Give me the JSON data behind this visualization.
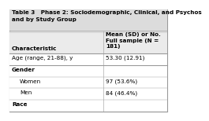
{
  "title_line1": "Table 3   Phase 2: Sociodemographic, Clinical, and Psychos",
  "title_line2": "and by Study Group",
  "col_header1": "Mean (SD) or No.",
  "col_header2a": "Full sample (N =",
  "col_header2b": "181)",
  "char_label": "Characteristic",
  "rows": [
    {
      "label": "Age (range, 21-88), y",
      "value": "53.30 (12.91)",
      "bold": false,
      "indent": 0
    },
    {
      "label": "Gender",
      "value": "",
      "bold": true,
      "indent": 0
    },
    {
      "label": "Women",
      "value": "97 (53.6%)",
      "bold": false,
      "indent": 1
    },
    {
      "label": "Men",
      "value": "84 (46.4%)",
      "bold": false,
      "indent": 1
    },
    {
      "label": "Race",
      "value": "",
      "bold": true,
      "indent": 0
    }
  ],
  "bg_title": "#dcdcdc",
  "bg_header": "#ebebeb",
  "bg_white": "#ffffff",
  "border_color": "#999999",
  "text_color": "#000000",
  "font_size": 5.2,
  "fig_width": 2.04,
  "fig_height": 1.34,
  "col_split": 0.595
}
